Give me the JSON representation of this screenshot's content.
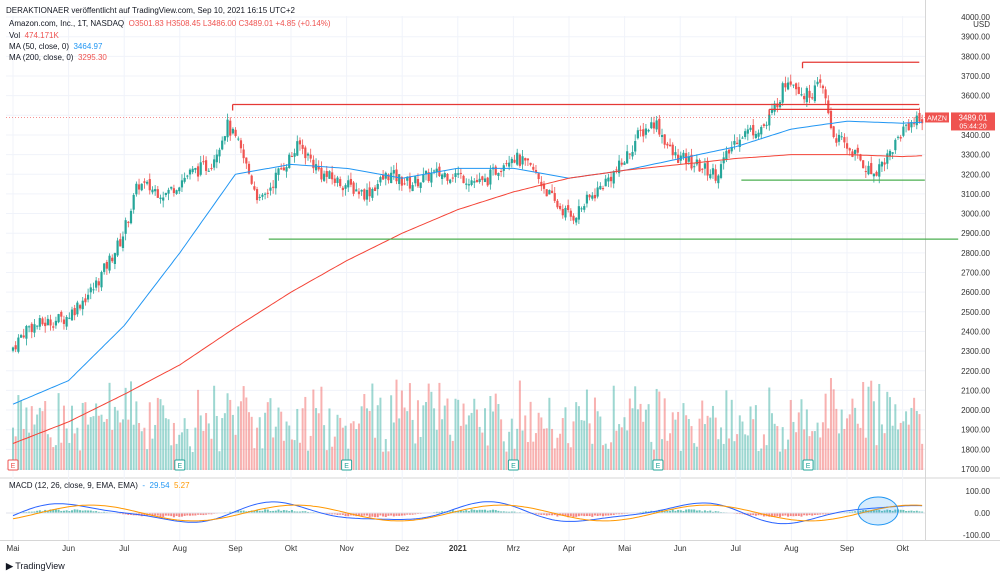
{
  "header": {
    "publisher": "DERAKTIONAER veröffentlicht auf TradingView.com, Sep 10, 2021 16:15 UTC+2",
    "symbol": "Amazon.com, Inc., 1T, NASDAQ",
    "ohlc": "O3501.83 H3508.45 L3486.00 C3489.01 +4.85 (+0.14%)",
    "vol_label": "Vol",
    "vol_value": "474.171K",
    "ma50_label": "MA (50, close, 0)",
    "ma50_value": "3464.97",
    "ma200_label": "MA (200, close, 0)",
    "ma200_value": "3295.30",
    "macd_label": "MACD (12, 26, close, 9, EMA, EMA)",
    "macd_v1": "-",
    "macd_v2": "29.54",
    "macd_v3": "5.27"
  },
  "price_axis": {
    "currency": "USD",
    "ticks": [
      "4000.00",
      "3900.00",
      "3800.00",
      "3700.00",
      "3600.00",
      "3500.00",
      "3400.00",
      "3300.00",
      "3200.00",
      "3100.00",
      "3000.00",
      "2900.00",
      "2800.00",
      "2700.00",
      "2600.00",
      "2500.00",
      "2400.00",
      "2300.00",
      "2200.00",
      "2100.00",
      "2000.00",
      "1900.00",
      "1800.00",
      "1700.00"
    ],
    "last_label": "AMZN",
    "last_price": "3489.01",
    "countdown": "05:44:20"
  },
  "macd_axis": {
    "ticks": [
      "100.00",
      "0.00",
      "-100.00"
    ]
  },
  "time_axis": {
    "labels": [
      "Mai",
      "Jun",
      "Jul",
      "Aug",
      "Sep",
      "Okt",
      "Nov",
      "Dez",
      "2021",
      "Mrz",
      "Apr",
      "Mai",
      "Jun",
      "Jul",
      "Aug",
      "Sep",
      "Okt"
    ]
  },
  "footer": {
    "brand": "TradingView"
  },
  "colors": {
    "up": "#26a69a",
    "down": "#ef5350",
    "ma50": "#2196f3",
    "ma200": "#f44336",
    "support": "#4caf50",
    "resistance": "#e53935",
    "macd": "#2962ff",
    "signal": "#ff9800"
  },
  "chart_data": {
    "type": "candlestick",
    "symbol": "AMZN",
    "ylim": [
      1700,
      4000
    ],
    "macd_ylim": [
      -100,
      100
    ],
    "months": [
      "Mai",
      "Jun",
      "Jul",
      "Aug",
      "Sep",
      "Okt",
      "Nov",
      "Dez",
      "2021",
      "Mrz",
      "Apr",
      "Mai",
      "Jun",
      "Jul",
      "Aug",
      "Sep",
      "Okt"
    ],
    "price_path": [
      {
        "t": 0,
        "p": 2300
      },
      {
        "t": 0.3,
        "p": 2420
      },
      {
        "t": 1,
        "p": 2470
      },
      {
        "t": 1.5,
        "p": 2620
      },
      {
        "t": 2,
        "p": 2870
      },
      {
        "t": 2.3,
        "p": 3150
      },
      {
        "t": 2.8,
        "p": 3100
      },
      {
        "t": 3.2,
        "p": 3200
      },
      {
        "t": 3.6,
        "p": 3250
      },
      {
        "t": 3.9,
        "p": 3450
      },
      {
        "t": 4.1,
        "p": 3350
      },
      {
        "t": 4.5,
        "p": 3050
      },
      {
        "t": 4.8,
        "p": 3200
      },
      {
        "t": 5.2,
        "p": 3350
      },
      {
        "t": 5.6,
        "p": 3200
      },
      {
        "t": 6,
        "p": 3150
      },
      {
        "t": 6.4,
        "p": 3100
      },
      {
        "t": 6.8,
        "p": 3200
      },
      {
        "t": 7.2,
        "p": 3150
      },
      {
        "t": 7.6,
        "p": 3200
      },
      {
        "t": 8,
        "p": 3200
      },
      {
        "t": 8.5,
        "p": 3150
      },
      {
        "t": 9,
        "p": 3300
      },
      {
        "t": 9.4,
        "p": 3220
      },
      {
        "t": 9.8,
        "p": 3050
      },
      {
        "t": 10.1,
        "p": 2980
      },
      {
        "t": 10.5,
        "p": 3100
      },
      {
        "t": 11,
        "p": 3250
      },
      {
        "t": 11.3,
        "p": 3400
      },
      {
        "t": 11.6,
        "p": 3470
      },
      {
        "t": 11.9,
        "p": 3300
      },
      {
        "t": 12.3,
        "p": 3250
      },
      {
        "t": 12.7,
        "p": 3200
      },
      {
        "t": 13.1,
        "p": 3400
      },
      {
        "t": 13.6,
        "p": 3450
      },
      {
        "t": 14,
        "p": 3700
      },
      {
        "t": 14.3,
        "p": 3600
      },
      {
        "t": 14.6,
        "p": 3650
      },
      {
        "t": 14.8,
        "p": 3400
      },
      {
        "t": 15.2,
        "p": 3300
      },
      {
        "t": 15.5,
        "p": 3200
      },
      {
        "t": 15.8,
        "p": 3300
      },
      {
        "t": 16.1,
        "p": 3450
      },
      {
        "t": 16.4,
        "p": 3490
      }
    ],
    "ma50_path": [
      {
        "t": 0,
        "p": 2030
      },
      {
        "t": 1,
        "p": 2150
      },
      {
        "t": 2,
        "p": 2430
      },
      {
        "t": 3,
        "p": 2800
      },
      {
        "t": 4,
        "p": 3200
      },
      {
        "t": 5,
        "p": 3250
      },
      {
        "t": 6,
        "p": 3230
      },
      {
        "t": 7,
        "p": 3180
      },
      {
        "t": 8,
        "p": 3230
      },
      {
        "t": 9,
        "p": 3230
      },
      {
        "t": 10,
        "p": 3180
      },
      {
        "t": 11,
        "p": 3220
      },
      {
        "t": 12,
        "p": 3280
      },
      {
        "t": 13,
        "p": 3340
      },
      {
        "t": 14,
        "p": 3430
      },
      {
        "t": 15,
        "p": 3470
      },
      {
        "t": 16,
        "p": 3460
      },
      {
        "t": 16.4,
        "p": 3465
      }
    ],
    "ma200_path": [
      {
        "t": 0,
        "p": 1830
      },
      {
        "t": 1,
        "p": 1940
      },
      {
        "t": 2,
        "p": 2080
      },
      {
        "t": 3,
        "p": 2230
      },
      {
        "t": 4,
        "p": 2420
      },
      {
        "t": 5,
        "p": 2600
      },
      {
        "t": 6,
        "p": 2760
      },
      {
        "t": 7,
        "p": 2900
      },
      {
        "t": 8,
        "p": 3020
      },
      {
        "t": 9,
        "p": 3110
      },
      {
        "t": 10,
        "p": 3180
      },
      {
        "t": 11,
        "p": 3220
      },
      {
        "t": 12,
        "p": 3250
      },
      {
        "t": 13,
        "p": 3280
      },
      {
        "t": 14,
        "p": 3300
      },
      {
        "t": 15,
        "p": 3300
      },
      {
        "t": 16,
        "p": 3290
      },
      {
        "t": 16.4,
        "p": 3295
      }
    ],
    "support_lines": [
      {
        "from": 4.6,
        "to": 17,
        "price": 2870
      },
      {
        "from": 13.1,
        "to": 16.4,
        "price": 3170
      }
    ],
    "resistance_lines": [
      {
        "from": 3.95,
        "to": 16.3,
        "price": 3555
      },
      {
        "from": 13.6,
        "to": 16.3,
        "price": 3530
      },
      {
        "from": 14.2,
        "to": 16.3,
        "price": 3770
      }
    ]
  }
}
